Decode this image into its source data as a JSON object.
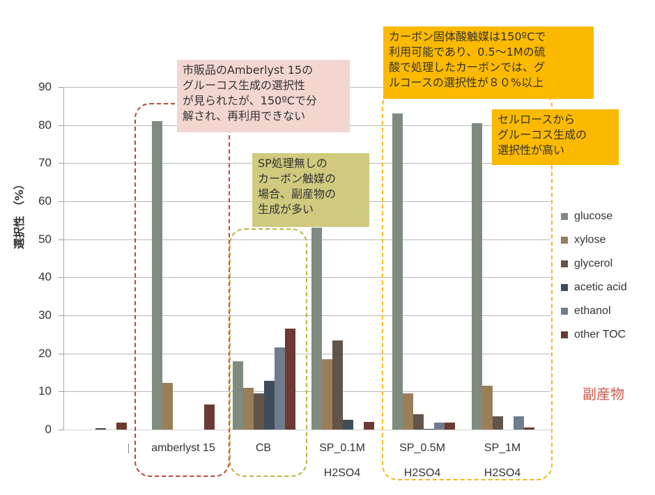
{
  "chart_data": {
    "type": "bar",
    "title": "",
    "xlabel": "",
    "ylabel": "選択性 （%）",
    "ylim": [
      0,
      90
    ],
    "yticks": [
      0,
      10,
      20,
      30,
      40,
      50,
      60,
      70,
      80,
      90
    ],
    "grid": true,
    "legend_position": "right",
    "categories": [
      "",
      "amberlyst 15",
      "CB",
      "SP_0.1M H2SO4",
      "SP_0.5M H2SO4",
      "SP_1M H2SO4"
    ],
    "category_lines": [
      [
        ""
      ],
      [
        "amberlyst 15"
      ],
      [
        "CB"
      ],
      [
        "SP_0.1M",
        "H2SO4"
      ],
      [
        "SP_0.5M",
        "H2SO4"
      ],
      [
        "SP_1M",
        "H2SO4"
      ]
    ],
    "series": [
      {
        "name": "glucose",
        "color": "#7f8b80",
        "values": [
          0,
          81,
          18,
          53,
          83,
          80.5
        ]
      },
      {
        "name": "xylose",
        "color": "#9a7e58",
        "values": [
          0,
          12.2,
          11,
          18.5,
          9.5,
          11.5
        ]
      },
      {
        "name": "glycerol",
        "color": "#635349",
        "values": [
          0,
          0,
          9.5,
          23.5,
          4,
          3.5
        ]
      },
      {
        "name": "acetic acid",
        "color": "#3e4c5a",
        "values": [
          0.3,
          0,
          12.8,
          2.5,
          0.2,
          0
        ]
      },
      {
        "name": "ethanol",
        "color": "#6f7c8e",
        "values": [
          0,
          0,
          21.5,
          0,
          1.8,
          3.5
        ]
      },
      {
        "name": "other TOC",
        "color": "#6c3a30",
        "values": [
          1.8,
          6.5,
          26.5,
          2,
          1.8,
          0.5
        ]
      }
    ]
  },
  "annotations": {
    "amberlyst_note": [
      "市販品のAmberlyst 15の",
      "グルーコス生成の選択性",
      "が見られたが、150ºCで分",
      "解され、再利用できない"
    ],
    "cb_note": [
      "SP処理無しの",
      "カーボン触媒の",
      "場合、副産物の",
      "生成が多い"
    ],
    "sp_note": [
      "カーボン固体酸触媒は150ºCで",
      "利用可能であり、0.5～1Mの硫",
      "酸で処理したカーボンでは、グ",
      "ルコースの選択性が８０%以上"
    ],
    "cellulose_note": [
      "セルロースから",
      "グルーコス生成の",
      "選択性が高い"
    ],
    "byproduct_label": "副産物"
  },
  "colors": {
    "amberlyst_note_bg": "#f3d6d0",
    "cb_note_bg": "#cfca7e",
    "sp_note_bg": "#fbb900",
    "amberlyst_box_border": "#b5483a",
    "cb_box_border": "#b8b340",
    "sp_box_border": "#f5b820",
    "byproduct_text": "#d4574a"
  }
}
